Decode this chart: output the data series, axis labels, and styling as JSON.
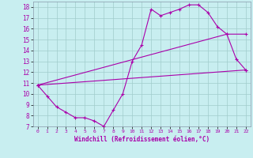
{
  "title": "",
  "xlabel": "Windchill (Refroidissement éolien,°C)",
  "bg_color": "#c8eef0",
  "grid_color": "#a0cccc",
  "line_color": "#aa00aa",
  "spine_color": "#8899aa",
  "xlim": [
    -0.5,
    22.5
  ],
  "ylim": [
    7,
    18.5
  ],
  "xticks": [
    0,
    1,
    2,
    3,
    4,
    5,
    6,
    7,
    8,
    9,
    10,
    11,
    12,
    13,
    14,
    15,
    16,
    17,
    18,
    19,
    20,
    21,
    22
  ],
  "yticks": [
    7,
    8,
    9,
    10,
    11,
    12,
    13,
    14,
    15,
    16,
    17,
    18
  ],
  "curve1_x": [
    0,
    1,
    2,
    3,
    4,
    5,
    6,
    7,
    8,
    9,
    10,
    11,
    12,
    13,
    14,
    15,
    16,
    17,
    18,
    19,
    20,
    21,
    22
  ],
  "curve1_y": [
    10.8,
    9.8,
    8.8,
    8.3,
    7.8,
    7.8,
    7.5,
    7.0,
    8.5,
    10.0,
    13.0,
    14.5,
    17.8,
    17.2,
    17.5,
    17.8,
    18.2,
    18.2,
    17.5,
    16.2,
    15.5,
    13.2,
    12.2
  ],
  "curve2_x": [
    0,
    20,
    22
  ],
  "curve2_y": [
    10.8,
    15.5,
    15.5
  ],
  "curve3_x": [
    0,
    22
  ],
  "curve3_y": [
    10.8,
    12.2
  ]
}
